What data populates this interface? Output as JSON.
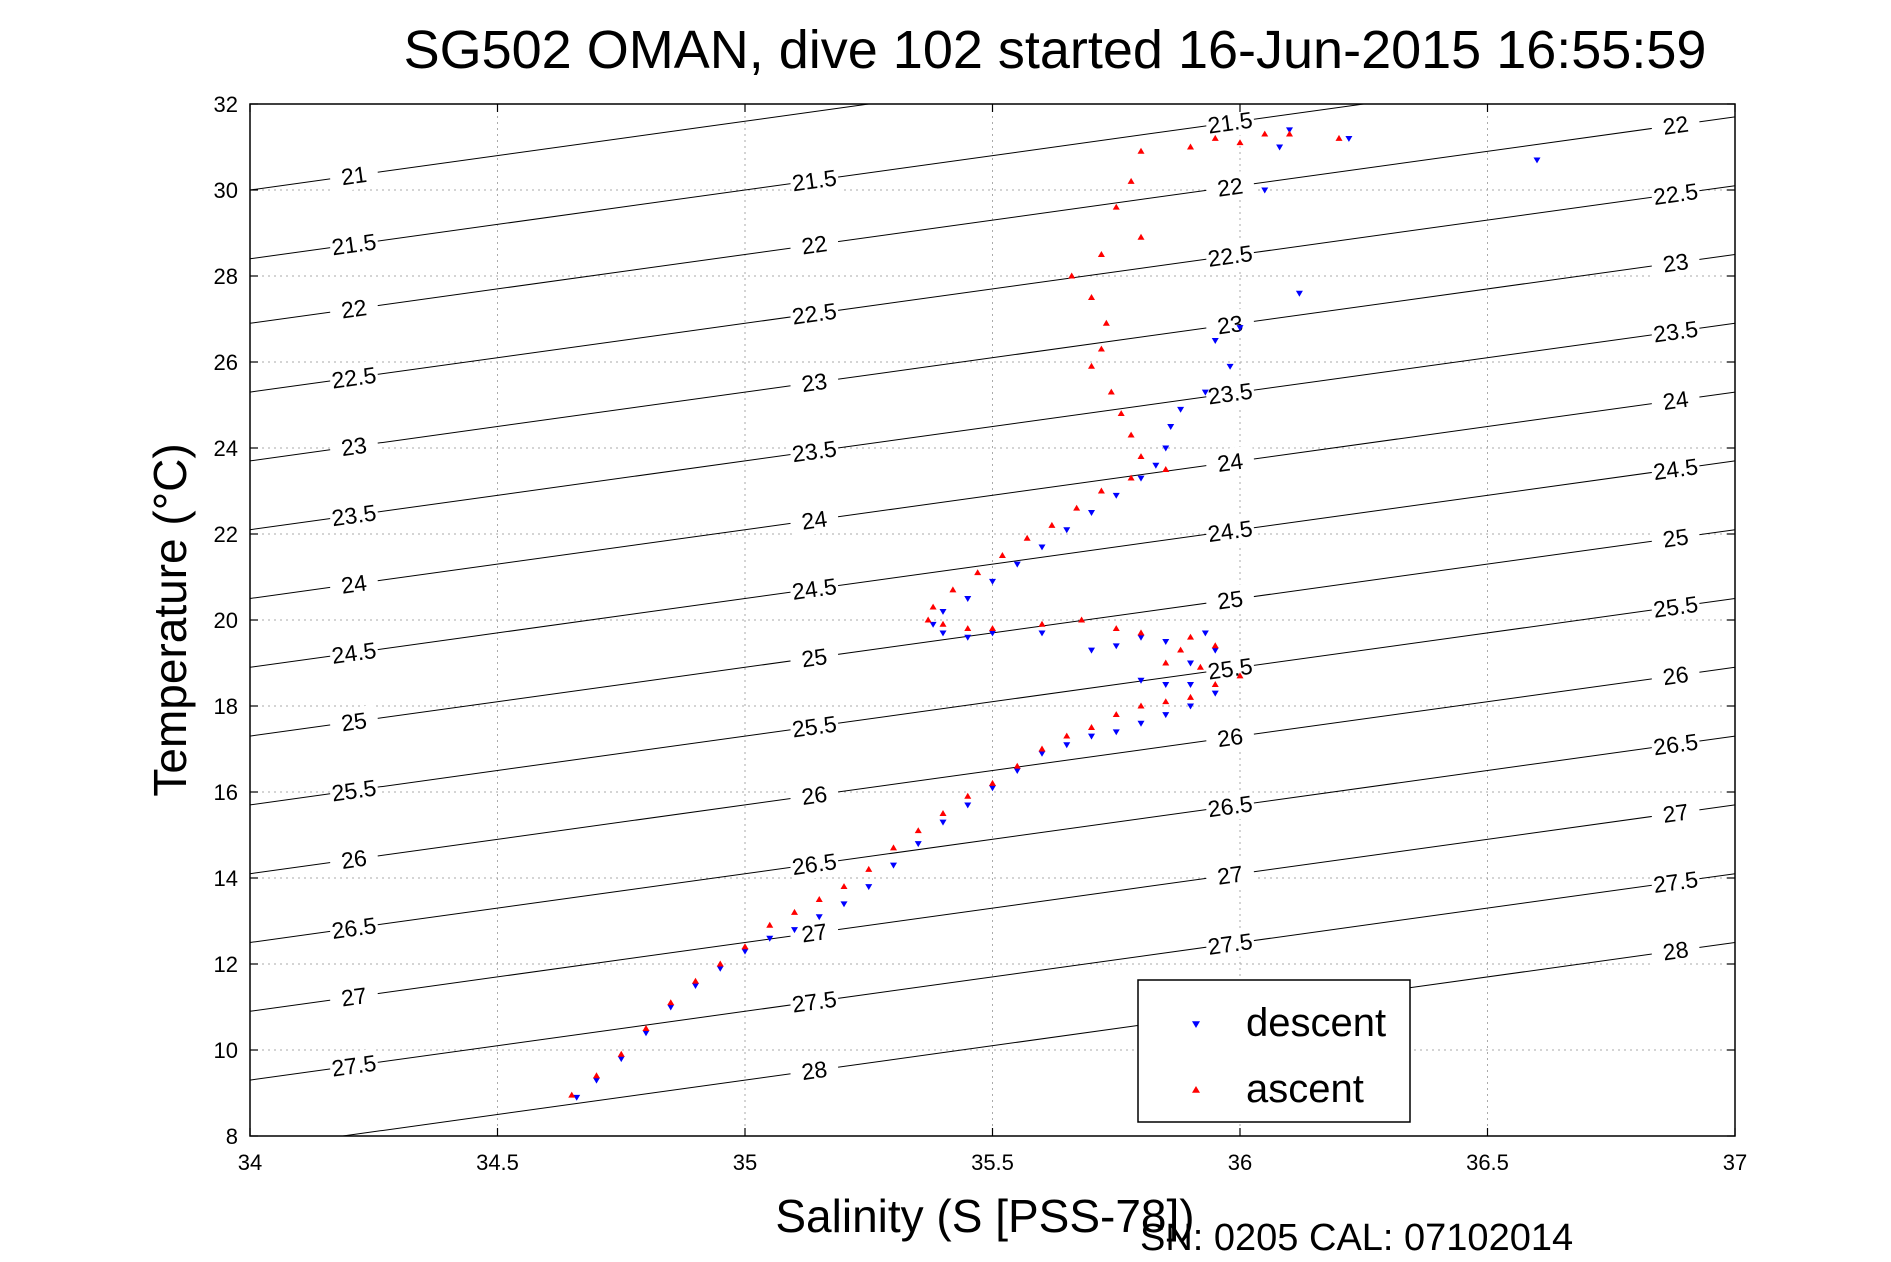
{
  "chart_data": {
    "type": "scatter",
    "title": "SG502 OMAN, dive 102 started 16-Jun-2015 16:55:59",
    "xlabel": "Salinity (S [PSS-78])",
    "ylabel": "Temperature (°C)",
    "xlim": [
      34,
      37
    ],
    "ylim": [
      8,
      32
    ],
    "xticks": [
      "34",
      "34.5",
      "35",
      "35.5",
      "36",
      "36.5",
      "37"
    ],
    "yticks": [
      "8",
      "10",
      "12",
      "14",
      "16",
      "18",
      "20",
      "22",
      "24",
      "26",
      "28",
      "30",
      "32"
    ],
    "grid": true,
    "legend_position": "lower-right",
    "footer": "SN: 0205  CAL: 07102014",
    "series": [
      {
        "name": "descent",
        "color": "#0000ff",
        "marker": "triangle-down",
        "points": [
          [
            34.66,
            8.9
          ],
          [
            34.7,
            9.3
          ],
          [
            34.75,
            9.8
          ],
          [
            34.8,
            10.4
          ],
          [
            34.85,
            11.0
          ],
          [
            34.9,
            11.5
          ],
          [
            34.95,
            11.9
          ],
          [
            35.0,
            12.3
          ],
          [
            35.05,
            12.6
          ],
          [
            35.1,
            12.8
          ],
          [
            35.15,
            13.1
          ],
          [
            35.2,
            13.4
          ],
          [
            35.25,
            13.8
          ],
          [
            35.3,
            14.3
          ],
          [
            35.35,
            14.8
          ],
          [
            35.4,
            15.3
          ],
          [
            35.45,
            15.7
          ],
          [
            35.5,
            16.1
          ],
          [
            35.55,
            16.5
          ],
          [
            35.6,
            16.9
          ],
          [
            35.65,
            17.1
          ],
          [
            35.7,
            17.3
          ],
          [
            35.75,
            17.4
          ],
          [
            35.8,
            17.6
          ],
          [
            35.85,
            17.8
          ],
          [
            35.9,
            18.0
          ],
          [
            35.95,
            18.3
          ],
          [
            35.9,
            18.5
          ],
          [
            35.85,
            18.5
          ],
          [
            35.8,
            18.6
          ],
          [
            35.9,
            19.0
          ],
          [
            35.95,
            19.3
          ],
          [
            35.93,
            19.7
          ],
          [
            35.85,
            19.5
          ],
          [
            35.8,
            19.6
          ],
          [
            35.75,
            19.4
          ],
          [
            35.7,
            19.3
          ],
          [
            35.6,
            19.7
          ],
          [
            35.5,
            19.7
          ],
          [
            35.45,
            19.6
          ],
          [
            35.4,
            19.7
          ],
          [
            35.38,
            19.9
          ],
          [
            35.4,
            20.2
          ],
          [
            35.45,
            20.5
          ],
          [
            35.5,
            20.9
          ],
          [
            35.55,
            21.3
          ],
          [
            35.6,
            21.7
          ],
          [
            35.65,
            22.1
          ],
          [
            35.7,
            22.5
          ],
          [
            35.75,
            22.9
          ],
          [
            35.8,
            23.3
          ],
          [
            35.83,
            23.6
          ],
          [
            35.85,
            24.0
          ],
          [
            35.86,
            24.5
          ],
          [
            35.88,
            24.9
          ],
          [
            35.93,
            25.3
          ],
          [
            35.95,
            26.5
          ],
          [
            35.98,
            25.9
          ],
          [
            36.0,
            26.8
          ],
          [
            36.05,
            30.0
          ],
          [
            36.08,
            31.0
          ],
          [
            36.1,
            31.4
          ],
          [
            36.12,
            27.6
          ],
          [
            36.22,
            31.2
          ],
          [
            36.6,
            30.7
          ]
        ]
      },
      {
        "name": "ascent",
        "color": "#ff0000",
        "marker": "triangle-up",
        "points": [
          [
            34.65,
            8.95
          ],
          [
            34.7,
            9.4
          ],
          [
            34.75,
            9.9
          ],
          [
            34.8,
            10.5
          ],
          [
            34.85,
            11.1
          ],
          [
            34.9,
            11.6
          ],
          [
            34.95,
            12.0
          ],
          [
            35.0,
            12.4
          ],
          [
            35.05,
            12.9
          ],
          [
            35.1,
            13.2
          ],
          [
            35.15,
            13.5
          ],
          [
            35.2,
            13.8
          ],
          [
            35.25,
            14.2
          ],
          [
            35.3,
            14.7
          ],
          [
            35.35,
            15.1
          ],
          [
            35.4,
            15.5
          ],
          [
            35.45,
            15.9
          ],
          [
            35.5,
            16.2
          ],
          [
            35.55,
            16.6
          ],
          [
            35.6,
            17.0
          ],
          [
            35.65,
            17.3
          ],
          [
            35.7,
            17.5
          ],
          [
            35.75,
            17.8
          ],
          [
            35.8,
            18.0
          ],
          [
            35.85,
            18.1
          ],
          [
            35.9,
            18.2
          ],
          [
            35.95,
            18.5
          ],
          [
            36.0,
            18.7
          ],
          [
            35.92,
            18.9
          ],
          [
            35.85,
            19.0
          ],
          [
            35.88,
            19.3
          ],
          [
            35.95,
            19.4
          ],
          [
            35.9,
            19.6
          ],
          [
            35.8,
            19.7
          ],
          [
            35.75,
            19.8
          ],
          [
            35.68,
            20.0
          ],
          [
            35.6,
            19.9
          ],
          [
            35.5,
            19.8
          ],
          [
            35.45,
            19.8
          ],
          [
            35.4,
            19.9
          ],
          [
            35.37,
            20.0
          ],
          [
            35.38,
            20.3
          ],
          [
            35.42,
            20.7
          ],
          [
            35.47,
            21.1
          ],
          [
            35.52,
            21.5
          ],
          [
            35.57,
            21.9
          ],
          [
            35.62,
            22.2
          ],
          [
            35.67,
            22.6
          ],
          [
            35.72,
            23.0
          ],
          [
            35.78,
            23.3
          ],
          [
            35.85,
            23.5
          ],
          [
            35.8,
            23.8
          ],
          [
            35.78,
            24.3
          ],
          [
            35.76,
            24.8
          ],
          [
            35.74,
            25.3
          ],
          [
            35.7,
            25.9
          ],
          [
            35.72,
            26.3
          ],
          [
            35.73,
            26.9
          ],
          [
            35.7,
            27.5
          ],
          [
            35.66,
            28.0
          ],
          [
            35.72,
            28.5
          ],
          [
            35.8,
            28.9
          ],
          [
            35.75,
            29.6
          ],
          [
            35.78,
            30.2
          ],
          [
            35.8,
            30.9
          ],
          [
            35.9,
            31.0
          ],
          [
            35.95,
            31.2
          ],
          [
            36.0,
            31.1
          ],
          [
            36.05,
            31.3
          ],
          [
            36.1,
            31.3
          ],
          [
            36.2,
            31.2
          ]
        ]
      }
    ],
    "contours": [
      {
        "label": "21",
        "t_left": 30.0,
        "t_right": 34.8
      },
      {
        "label": "21.5",
        "t_left": 28.4,
        "t_right": 33.2
      },
      {
        "label": "22",
        "t_left": 26.9,
        "t_right": 31.7
      },
      {
        "label": "22.5",
        "t_left": 25.3,
        "t_right": 30.1
      },
      {
        "label": "23",
        "t_left": 23.7,
        "t_right": 28.5
      },
      {
        "label": "23.5",
        "t_left": 22.1,
        "t_right": 26.9
      },
      {
        "label": "24",
        "t_left": 20.5,
        "t_right": 25.3
      },
      {
        "label": "24.5",
        "t_left": 18.9,
        "t_right": 23.7
      },
      {
        "label": "25",
        "t_left": 17.3,
        "t_right": 22.1
      },
      {
        "label": "25.5",
        "t_left": 15.7,
        "t_right": 20.5
      },
      {
        "label": "26",
        "t_left": 14.1,
        "t_right": 18.9
      },
      {
        "label": "26.5",
        "t_left": 12.5,
        "t_right": 17.3
      },
      {
        "label": "27",
        "t_left": 10.9,
        "t_right": 15.7
      },
      {
        "label": "27.5",
        "t_left": 9.3,
        "t_right": 14.1
      },
      {
        "label": "28",
        "t_left": 7.7,
        "t_right": 12.5
      }
    ]
  }
}
